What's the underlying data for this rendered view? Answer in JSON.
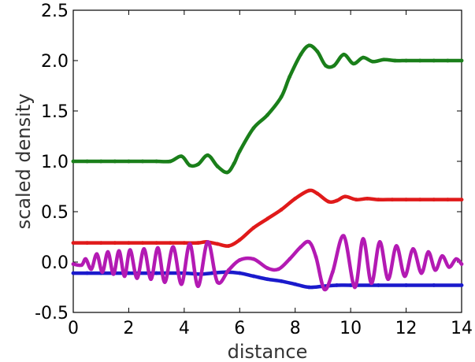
{
  "chart_data": {
    "type": "line",
    "title": "",
    "xlabel": "distance",
    "ylabel": "scaled density",
    "xlim": [
      0,
      14
    ],
    "ylim": [
      -0.5,
      2.5
    ],
    "grid": false,
    "legend": "none",
    "xticks": [
      0,
      2,
      4,
      6,
      8,
      10,
      12,
      14
    ],
    "xtick_labels": [
      "0",
      "2",
      "4",
      "6",
      "8",
      "10",
      "12",
      "14"
    ],
    "yticks": [
      2.5,
      2.0,
      1.5,
      1.0,
      0.5,
      0.0,
      -0.5
    ],
    "ytick_labels": [
      "2.5",
      "2.0",
      "1.5",
      "1.0",
      "0.5",
      "0.0",
      "-0.5"
    ],
    "series": [
      {
        "color": "#1a7f1a",
        "x": [
          0.0,
          0.5,
          1.0,
          1.5,
          2.0,
          2.5,
          3.0,
          3.5,
          3.9,
          4.2,
          4.5,
          4.85,
          5.2,
          5.55,
          5.8,
          6.0,
          6.5,
          7.0,
          7.5,
          7.8,
          8.2,
          8.5,
          8.8,
          9.1,
          9.4,
          9.75,
          10.1,
          10.45,
          10.8,
          11.2,
          11.6,
          12.0,
          12.5,
          13.0,
          13.5,
          14.0
        ],
        "y": [
          1.0,
          1.0,
          1.0,
          1.0,
          1.0,
          1.0,
          1.0,
          1.0,
          1.05,
          0.96,
          0.97,
          1.06,
          0.95,
          0.89,
          0.98,
          1.1,
          1.33,
          1.46,
          1.64,
          1.84,
          2.06,
          2.15,
          2.09,
          1.95,
          1.95,
          2.06,
          1.97,
          2.03,
          1.99,
          2.01,
          2.0,
          2.0,
          2.0,
          2.0,
          2.0,
          2.0
        ]
      },
      {
        "color": "#e01a1a",
        "x": [
          0.0,
          0.5,
          1.0,
          1.5,
          2.0,
          2.5,
          3.0,
          3.5,
          4.0,
          4.5,
          4.8,
          5.2,
          5.6,
          6.0,
          6.5,
          7.0,
          7.5,
          8.0,
          8.5,
          8.8,
          9.2,
          9.5,
          9.8,
          10.2,
          10.6,
          11.0,
          11.5,
          12.0,
          12.5,
          13.0,
          13.5,
          14.0
        ],
        "y": [
          0.19,
          0.19,
          0.19,
          0.19,
          0.19,
          0.19,
          0.19,
          0.19,
          0.19,
          0.19,
          0.2,
          0.18,
          0.16,
          0.22,
          0.34,
          0.43,
          0.52,
          0.63,
          0.71,
          0.68,
          0.6,
          0.61,
          0.65,
          0.62,
          0.63,
          0.62,
          0.62,
          0.62,
          0.62,
          0.62,
          0.62,
          0.62
        ]
      },
      {
        "color": "#1a1acc",
        "x": [
          0.0,
          0.5,
          1.0,
          2.0,
          3.0,
          4.0,
          4.6,
          5.0,
          5.5,
          6.0,
          6.5,
          7.0,
          7.5,
          8.0,
          8.5,
          9.0,
          9.5,
          10.0,
          11.0,
          12.0,
          13.0,
          14.0
        ],
        "y": [
          -0.11,
          -0.11,
          -0.11,
          -0.11,
          -0.11,
          -0.11,
          -0.12,
          -0.11,
          -0.1,
          -0.11,
          -0.14,
          -0.17,
          -0.19,
          -0.22,
          -0.25,
          -0.24,
          -0.23,
          -0.23,
          -0.23,
          -0.23,
          -0.23,
          -0.23
        ]
      },
      {
        "color": "#b31ab3",
        "x": [
          0.0,
          0.3,
          0.45,
          0.65,
          0.85,
          1.05,
          1.25,
          1.45,
          1.65,
          1.85,
          2.05,
          2.3,
          2.55,
          2.8,
          3.05,
          3.3,
          3.6,
          3.9,
          4.2,
          4.5,
          4.85,
          5.2,
          5.6,
          6.0,
          6.5,
          7.0,
          7.4,
          7.8,
          8.2,
          8.5,
          8.75,
          9.05,
          9.35,
          9.75,
          10.15,
          10.45,
          10.75,
          11.05,
          11.35,
          11.65,
          11.95,
          12.25,
          12.55,
          12.8,
          13.05,
          13.3,
          13.55,
          13.8,
          14.0
        ],
        "y": [
          -0.02,
          -0.03,
          0.03,
          -0.07,
          0.08,
          -0.1,
          0.1,
          -0.12,
          0.11,
          -0.14,
          0.12,
          -0.16,
          0.13,
          -0.17,
          0.14,
          -0.2,
          0.15,
          -0.22,
          0.18,
          -0.24,
          0.2,
          -0.2,
          -0.08,
          0.02,
          0.03,
          -0.06,
          -0.07,
          0.03,
          0.15,
          0.2,
          0.05,
          -0.27,
          -0.1,
          0.26,
          -0.25,
          0.23,
          -0.21,
          0.2,
          -0.17,
          0.16,
          -0.14,
          0.13,
          -0.11,
          0.1,
          -0.08,
          0.06,
          -0.05,
          0.03,
          -0.02
        ]
      }
    ]
  }
}
